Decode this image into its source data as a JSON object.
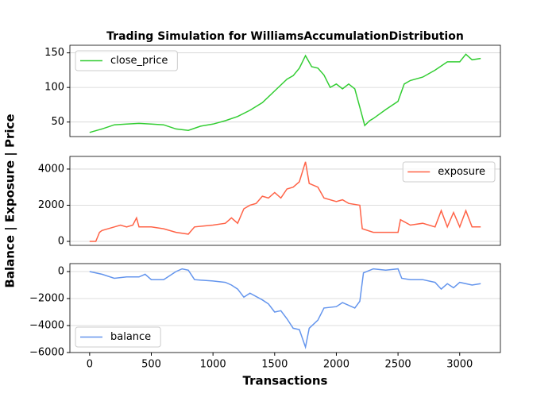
{
  "chart_data": [
    {
      "type": "line",
      "title": "Trading Simulation for WilliamsAccumulationDistribution",
      "x": [
        0,
        100,
        200,
        300,
        400,
        500,
        600,
        700,
        800,
        900,
        1000,
        1100,
        1200,
        1300,
        1400,
        1500,
        1600,
        1650,
        1700,
        1750,
        1800,
        1850,
        1900,
        1950,
        2000,
        2050,
        2100,
        2150,
        2200,
        2230,
        2270,
        2300,
        2400,
        2500,
        2550,
        2600,
        2700,
        2800,
        2900,
        3000,
        3050,
        3100,
        3170
      ],
      "series": [
        {
          "name": "close_price",
          "color": "#32cd32",
          "values": [
            35,
            40,
            46,
            47,
            48,
            47,
            46,
            40,
            38,
            44,
            47,
            52,
            58,
            67,
            78,
            95,
            112,
            117,
            128,
            146,
            130,
            128,
            118,
            100,
            105,
            98,
            105,
            98,
            65,
            45,
            52,
            55,
            68,
            80,
            105,
            110,
            115,
            125,
            137,
            137,
            148,
            140,
            142
          ]
        }
      ],
      "xlim": [
        -160,
        3330
      ],
      "ylim": [
        29,
        161
      ],
      "yticks": [
        50,
        100,
        150
      ],
      "grid": true,
      "legend": "upper left"
    },
    {
      "type": "line",
      "ylabel": "Balance | Exposure | Price",
      "x": [
        0,
        50,
        80,
        100,
        200,
        250,
        300,
        350,
        380,
        400,
        500,
        600,
        700,
        800,
        850,
        1000,
        1100,
        1150,
        1200,
        1250,
        1300,
        1350,
        1400,
        1450,
        1500,
        1550,
        1600,
        1650,
        1700,
        1750,
        1780,
        1850,
        1900,
        2000,
        2050,
        2100,
        2190,
        2210,
        2300,
        2400,
        2500,
        2520,
        2600,
        2700,
        2800,
        2850,
        2900,
        2950,
        3000,
        3050,
        3100,
        3170
      ],
      "series": [
        {
          "name": "exposure",
          "color": "#ff6347",
          "values": [
            0,
            0,
            500,
            600,
            800,
            900,
            800,
            900,
            1300,
            800,
            800,
            700,
            500,
            400,
            800,
            900,
            1000,
            1300,
            1000,
            1800,
            2000,
            2100,
            2500,
            2400,
            2700,
            2400,
            2900,
            3000,
            3300,
            4400,
            3200,
            3000,
            2400,
            2200,
            2300,
            2100,
            2000,
            700,
            500,
            500,
            500,
            1200,
            900,
            1000,
            800,
            1700,
            800,
            1600,
            800,
            1700,
            800,
            800
          ]
        }
      ],
      "xlim": [
        -160,
        3330
      ],
      "ylim": [
        -220,
        4700
      ],
      "yticks": [
        0,
        2000,
        4000
      ],
      "grid": true,
      "legend": "upper right"
    },
    {
      "type": "line",
      "xlabel": "Transactions",
      "x": [
        0,
        100,
        200,
        300,
        400,
        450,
        500,
        600,
        700,
        750,
        800,
        850,
        1000,
        1100,
        1150,
        1200,
        1250,
        1300,
        1400,
        1450,
        1500,
        1550,
        1600,
        1650,
        1700,
        1750,
        1780,
        1850,
        1900,
        2000,
        2050,
        2150,
        2190,
        2220,
        2300,
        2400,
        2500,
        2530,
        2600,
        2700,
        2800,
        2850,
        2900,
        2950,
        3000,
        3100,
        3170
      ],
      "series": [
        {
          "name": "balance",
          "color": "#6495ed",
          "values": [
            0,
            -200,
            -500,
            -400,
            -400,
            -200,
            -600,
            -600,
            0,
            200,
            100,
            -600,
            -700,
            -800,
            -1000,
            -1300,
            -1900,
            -1600,
            -2100,
            -2400,
            -3000,
            -2900,
            -3500,
            -4200,
            -4300,
            -5600,
            -4200,
            -3600,
            -2700,
            -2600,
            -2300,
            -2700,
            -2200,
            -100,
            200,
            100,
            200,
            -500,
            -600,
            -600,
            -800,
            -1300,
            -900,
            -1200,
            -800,
            -1000,
            -900
          ]
        }
      ],
      "xlim": [
        -160,
        3330
      ],
      "ylim": [
        -6000,
        590
      ],
      "yticks": [
        {
          "value": -6000,
          "label": "−6000"
        },
        {
          "value": -4000,
          "label": "−4000"
        },
        {
          "value": -2000,
          "label": "−2000"
        },
        0
      ],
      "xticks": [
        0,
        500,
        1000,
        1500,
        2000,
        2500,
        3000
      ],
      "grid": true,
      "legend": "lower left"
    }
  ]
}
